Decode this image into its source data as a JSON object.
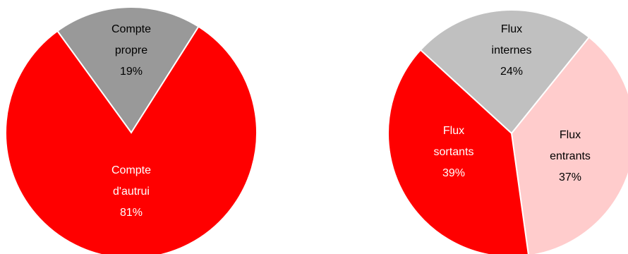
{
  "chart_data": [
    {
      "type": "pie",
      "slices": [
        {
          "label": [
            "Compte",
            "propre"
          ],
          "value": 19,
          "value_label": "19%",
          "color": "#999999",
          "text_color": "#000000"
        },
        {
          "label": [
            "Compte",
            "d'autrui"
          ],
          "value": 81,
          "value_label": "81%",
          "color": "#ff0000",
          "text_color": "#ffffff"
        }
      ]
    },
    {
      "type": "pie",
      "slices": [
        {
          "label": [
            "Flux",
            "internes"
          ],
          "value": 24,
          "value_label": "24%",
          "color": "#c0c0c0",
          "text_color": "#000000"
        },
        {
          "label": [
            "Flux",
            "entrants"
          ],
          "value": 37,
          "value_label": "37%",
          "color": "#ffcccc",
          "text_color": "#000000"
        },
        {
          "label": [
            "Flux",
            "sortants"
          ],
          "value": 39,
          "value_label": "39%",
          "color": "#ff0000",
          "text_color": "#ffffff"
        }
      ]
    }
  ]
}
